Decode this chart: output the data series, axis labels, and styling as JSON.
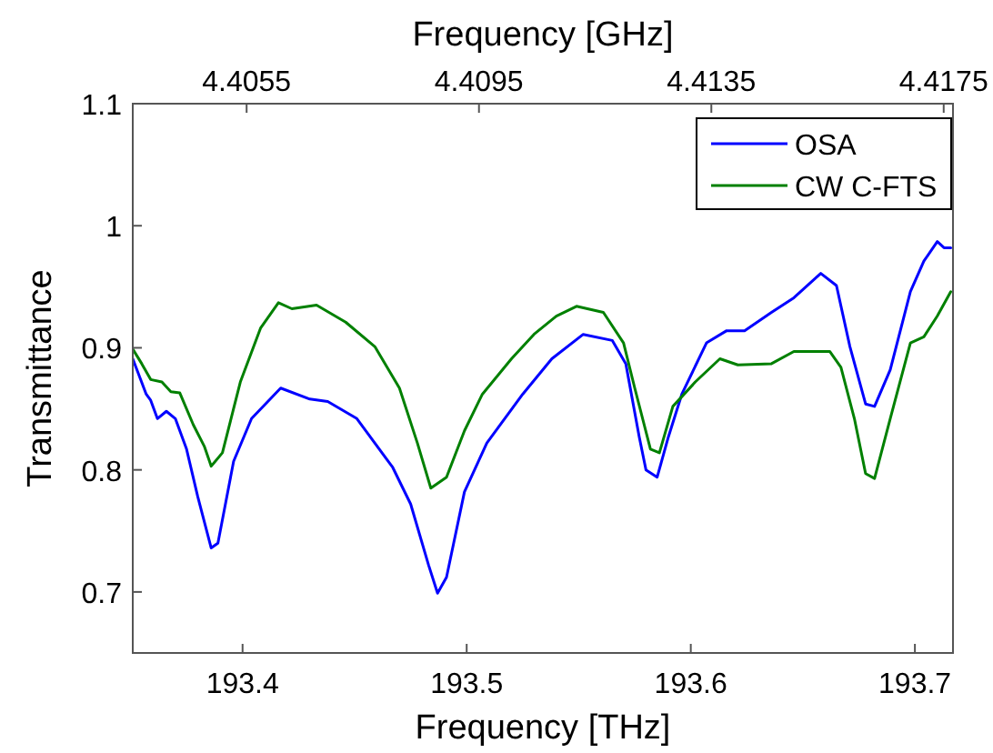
{
  "chart_data": {
    "type": "line",
    "xlabel": "Frequency [THz]",
    "x2label": "Frequency [GHz]",
    "ylabel": "Transmittance",
    "xlim": [
      193.351,
      193.717
    ],
    "xticks": [
      193.4,
      193.5,
      193.6,
      193.7
    ],
    "x2lim": [
      4.40354,
      4.41766
    ],
    "x2ticks": [
      4.4055,
      4.4095,
      4.4135,
      4.4175
    ],
    "ylim": [
      0.65,
      1.1
    ],
    "yticks": [
      0.7,
      0.8,
      0.9,
      1,
      1.1
    ],
    "grid": false,
    "legend": "top right",
    "line_style": "solid",
    "marker": "none",
    "series": [
      {
        "name": "OSA",
        "color": "#0000ff",
        "x": [
          193.351,
          193.357,
          193.359,
          193.362,
          193.366,
          193.37,
          193.375,
          193.38,
          193.386,
          193.389,
          193.396,
          193.404,
          193.417,
          193.43,
          193.438,
          193.451,
          193.467,
          193.475,
          193.483,
          193.487,
          193.491,
          193.499,
          193.509,
          193.525,
          193.538,
          193.552,
          193.565,
          193.571,
          193.577,
          193.58,
          193.585,
          193.59,
          193.596,
          193.607,
          193.616,
          193.624,
          193.636,
          193.646,
          193.658,
          193.665,
          193.671,
          193.678,
          193.682,
          193.689,
          193.698,
          193.704,
          193.71,
          193.713,
          193.716
        ],
        "values": [
          0.891,
          0.862,
          0.857,
          0.842,
          0.848,
          0.842,
          0.817,
          0.778,
          0.736,
          0.74,
          0.807,
          0.842,
          0.867,
          0.858,
          0.856,
          0.842,
          0.802,
          0.772,
          0.722,
          0.699,
          0.712,
          0.782,
          0.822,
          0.862,
          0.891,
          0.911,
          0.906,
          0.887,
          0.827,
          0.8,
          0.794,
          0.827,
          0.862,
          0.904,
          0.914,
          0.914,
          0.929,
          0.941,
          0.961,
          0.951,
          0.901,
          0.854,
          0.852,
          0.882,
          0.946,
          0.971,
          0.987,
          0.982,
          0.982
        ]
      },
      {
        "name": "CW C-FTS",
        "color": "#008000",
        "x": [
          193.351,
          193.355,
          193.359,
          193.364,
          193.368,
          193.372,
          193.378,
          193.383,
          193.386,
          193.391,
          193.399,
          193.408,
          193.416,
          193.422,
          193.433,
          193.446,
          193.459,
          193.47,
          193.478,
          193.484,
          193.491,
          193.499,
          193.507,
          193.52,
          193.53,
          193.54,
          193.549,
          193.561,
          193.57,
          193.575,
          193.582,
          193.586,
          193.592,
          193.602,
          193.613,
          193.621,
          193.636,
          193.646,
          193.662,
          193.667,
          193.673,
          193.678,
          193.682,
          193.689,
          193.698,
          193.704,
          193.71,
          193.716
        ],
        "values": [
          0.899,
          0.887,
          0.874,
          0.872,
          0.864,
          0.863,
          0.837,
          0.819,
          0.803,
          0.814,
          0.872,
          0.916,
          0.937,
          0.932,
          0.935,
          0.921,
          0.901,
          0.867,
          0.822,
          0.785,
          0.794,
          0.832,
          0.862,
          0.891,
          0.911,
          0.926,
          0.934,
          0.929,
          0.904,
          0.867,
          0.817,
          0.814,
          0.852,
          0.872,
          0.891,
          0.886,
          0.887,
          0.897,
          0.897,
          0.884,
          0.842,
          0.797,
          0.793,
          0.842,
          0.904,
          0.909,
          0.926,
          0.946
        ]
      }
    ]
  }
}
